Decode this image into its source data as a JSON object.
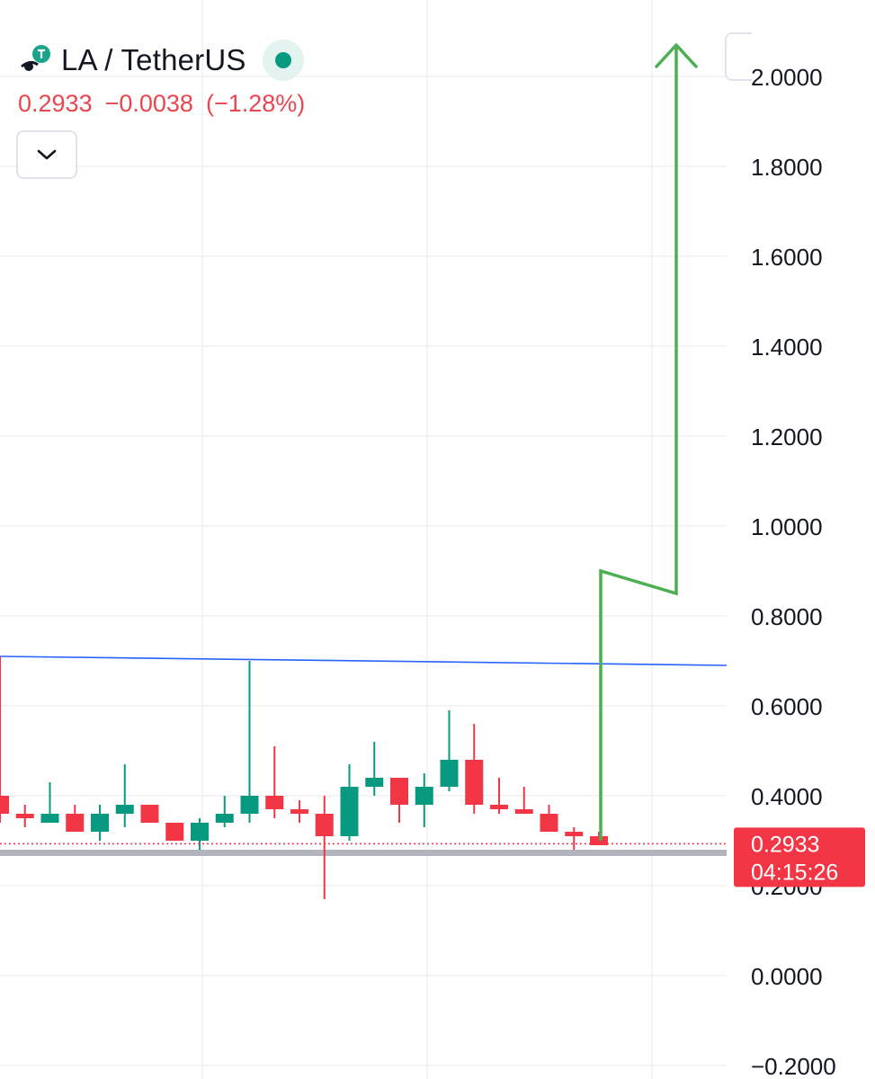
{
  "header": {
    "symbol": "LA / TetherUS",
    "status": "market-open",
    "last_price": "0.2933",
    "change": "−0.0038",
    "change_pct": "(−1.28%)"
  },
  "price_label": {
    "price": "0.2933",
    "countdown": "04:15:26"
  },
  "colors": {
    "up": "#089981",
    "down": "#f23645",
    "resistance_line": "#2962ff",
    "projection_arrow": "#4caf50",
    "support_band": "#b2b5be",
    "price_tag": "#f23645"
  },
  "chart_data": {
    "type": "candlestick",
    "ylim": [
      -0.2,
      2.0
    ],
    "y_ticks": [
      "2.0000",
      "1.8000",
      "1.6000",
      "1.4000",
      "1.2000",
      "1.0000",
      "0.8000",
      "0.6000",
      "0.4000",
      "0.2000",
      "0.0000",
      "−0.2000"
    ],
    "candles": [
      {
        "o": 0.4,
        "h": 0.71,
        "l": 0.34,
        "c": 0.36
      },
      {
        "o": 0.36,
        "h": 0.38,
        "l": 0.33,
        "c": 0.35
      },
      {
        "o": 0.34,
        "h": 0.43,
        "l": 0.34,
        "c": 0.36
      },
      {
        "o": 0.36,
        "h": 0.38,
        "l": 0.32,
        "c": 0.32
      },
      {
        "o": 0.32,
        "h": 0.38,
        "l": 0.3,
        "c": 0.36
      },
      {
        "o": 0.36,
        "h": 0.47,
        "l": 0.33,
        "c": 0.38
      },
      {
        "o": 0.38,
        "h": 0.38,
        "l": 0.34,
        "c": 0.34
      },
      {
        "o": 0.34,
        "h": 0.34,
        "l": 0.3,
        "c": 0.3
      },
      {
        "o": 0.3,
        "h": 0.35,
        "l": 0.28,
        "c": 0.34
      },
      {
        "o": 0.34,
        "h": 0.4,
        "l": 0.33,
        "c": 0.36
      },
      {
        "o": 0.36,
        "h": 0.7,
        "l": 0.34,
        "c": 0.4
      },
      {
        "o": 0.4,
        "h": 0.51,
        "l": 0.35,
        "c": 0.37
      },
      {
        "o": 0.37,
        "h": 0.39,
        "l": 0.34,
        "c": 0.36
      },
      {
        "o": 0.36,
        "h": 0.4,
        "l": 0.17,
        "c": 0.31
      },
      {
        "o": 0.31,
        "h": 0.47,
        "l": 0.3,
        "c": 0.42
      },
      {
        "o": 0.42,
        "h": 0.52,
        "l": 0.4,
        "c": 0.44
      },
      {
        "o": 0.44,
        "h": 0.44,
        "l": 0.34,
        "c": 0.38
      },
      {
        "o": 0.38,
        "h": 0.45,
        "l": 0.33,
        "c": 0.42
      },
      {
        "o": 0.42,
        "h": 0.59,
        "l": 0.41,
        "c": 0.48
      },
      {
        "o": 0.48,
        "h": 0.56,
        "l": 0.36,
        "c": 0.38
      },
      {
        "o": 0.38,
        "h": 0.44,
        "l": 0.36,
        "c": 0.37
      },
      {
        "o": 0.37,
        "h": 0.42,
        "l": 0.36,
        "c": 0.36
      },
      {
        "o": 0.36,
        "h": 0.38,
        "l": 0.32,
        "c": 0.32
      },
      {
        "o": 0.32,
        "h": 0.33,
        "l": 0.28,
        "c": 0.31
      },
      {
        "o": 0.31,
        "h": 0.32,
        "l": 0.29,
        "c": 0.29
      }
    ],
    "resistance_line": {
      "from": 0.71,
      "to": 0.69
    },
    "support_level": 0.285,
    "current_price": 0.2933,
    "projection_path": [
      0.3,
      0.9,
      0.85,
      2.07
    ],
    "grid": true
  }
}
